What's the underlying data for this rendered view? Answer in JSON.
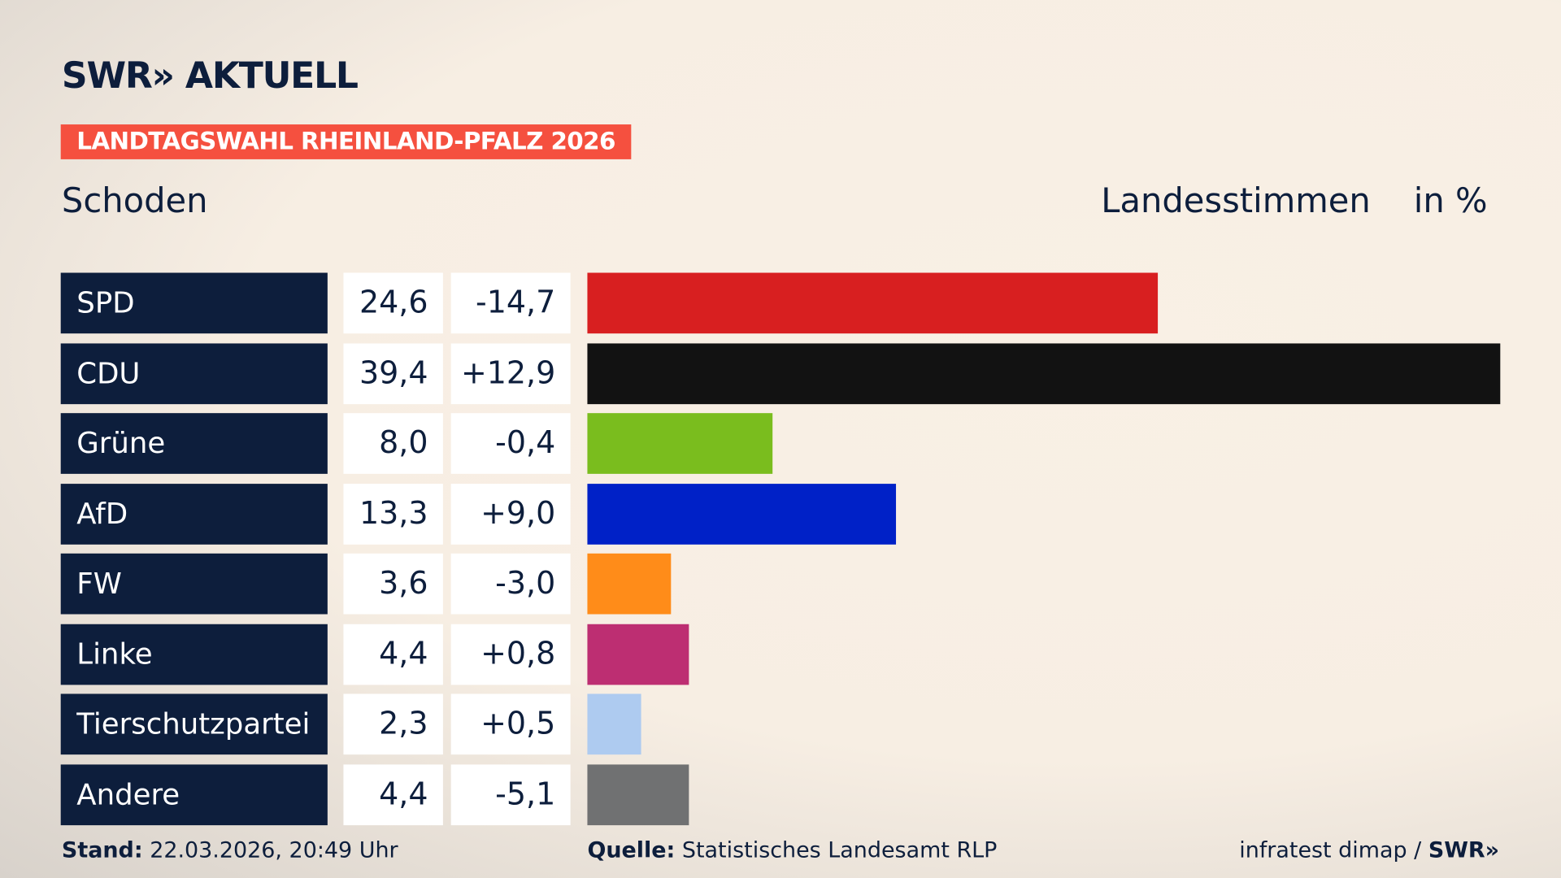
{
  "header": {
    "logo": "SWR» AKTUELL",
    "badge": "LANDTAGSWAHL RHEINLAND-PFALZ 2026",
    "place": "Schoden",
    "metric": "Landesstimmen",
    "unit": "in %"
  },
  "chart_data": {
    "type": "bar",
    "orientation": "horizontal",
    "categories": [
      "SPD",
      "CDU",
      "Grüne",
      "AfD",
      "FW",
      "Linke",
      "Tierschutzpartei",
      "Andere"
    ],
    "values": [
      24.6,
      39.4,
      8.0,
      13.3,
      3.6,
      4.4,
      2.3,
      4.4
    ],
    "value_labels": [
      "24,6",
      "39,4",
      "8,0",
      "13,3",
      "3,6",
      "4,4",
      "2,3",
      "4,4"
    ],
    "change_labels": [
      "-14,7",
      "+12,9",
      "-0,4",
      "+9,0",
      "-3,0",
      "+0,8",
      "+0,5",
      "-5,1"
    ],
    "colors": [
      "#d81f20",
      "#121212",
      "#7abd1e",
      "#0021c7",
      "#ff8c19",
      "#bd2e72",
      "#aecbf0",
      "#707172"
    ],
    "xlim": [
      0,
      39.4
    ],
    "grid": false
  },
  "footer": {
    "stand_label": "Stand:",
    "stand_value": "22.03.2026, 20:49 Uhr",
    "source_label": "Quelle:",
    "source_value": "Statistisches Landesamt RLP",
    "credit": "infratest dimap / ",
    "credit_logo": "SWR»"
  }
}
